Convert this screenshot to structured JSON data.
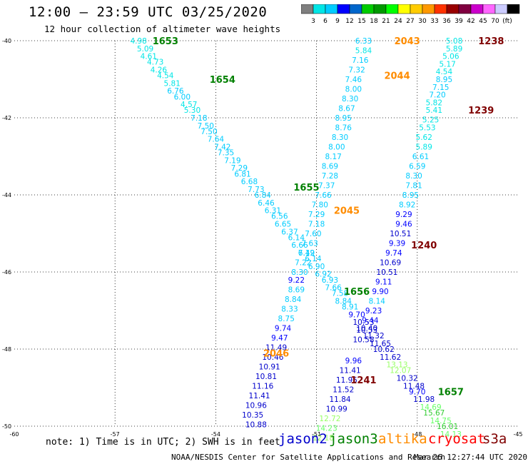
{
  "header": {
    "title": "12:00 – 23:59 UTC 03/25/2020",
    "subtitle": "12 hour collection of altimeter wave heights"
  },
  "scale": {
    "colors": [
      "#7f7f7f",
      "#00e6e6",
      "#00ccff",
      "#0000ff",
      "#0066cc",
      "#00cc00",
      "#009900",
      "#00ff00",
      "#ffff00",
      "#ffcc00",
      "#ff9900",
      "#ff3300",
      "#990000",
      "#800040",
      "#cc00cc",
      "#ff66ff",
      "#ccccff",
      "#000000"
    ],
    "labels": [
      "3",
      "6",
      "9",
      "12",
      "15",
      "18",
      "21",
      "24",
      "27",
      "30",
      "33",
      "36",
      "39",
      "42",
      "45",
      "70",
      "(ft)"
    ]
  },
  "map": {
    "lat_ticks": [
      "-40",
      "-42",
      "-44",
      "-46",
      "-48",
      "-50"
    ],
    "lon_ticks": [
      "-60",
      "-57",
      "-54",
      "-51",
      "-48",
      "-45"
    ],
    "lat_range": [
      -50,
      -40
    ],
    "lon_range": [
      -60,
      -45
    ],
    "grid": "dotted"
  },
  "passes": [
    {
      "label": "1653",
      "color": "#008000",
      "lat": -40.0,
      "lon": -55.5
    },
    {
      "label": "1654",
      "color": "#008000",
      "lat": -41.0,
      "lon": -53.8
    },
    {
      "label": "1655",
      "color": "#008000",
      "lat": -43.8,
      "lon": -51.3
    },
    {
      "label": "1656",
      "color": "#008000",
      "lat": -46.5,
      "lon": -49.8
    },
    {
      "label": "1657",
      "color": "#008000",
      "lat": -49.1,
      "lon": -47.0
    },
    {
      "label": "2043",
      "color": "#ff8c00",
      "lat": -40.0,
      "lon": -48.3
    },
    {
      "label": "2044",
      "color": "#ff8c00",
      "lat": -40.9,
      "lon": -48.6
    },
    {
      "label": "2045",
      "color": "#ff8c00",
      "lat": -44.4,
      "lon": -50.1
    },
    {
      "label": "2046",
      "color": "#ff8c00",
      "lat": -48.1,
      "lon": -52.2
    },
    {
      "label": "1238",
      "color": "#800000",
      "lat": -40.0,
      "lon": -45.8
    },
    {
      "label": "1239",
      "color": "#800000",
      "lat": -41.8,
      "lon": -46.1
    },
    {
      "label": "1240",
      "color": "#800000",
      "lat": -45.3,
      "lon": -47.8
    },
    {
      "label": "1241",
      "color": "#800000",
      "lat": -48.8,
      "lon": -49.6
    }
  ],
  "tracks": [
    {
      "color_key": "jason3",
      "points": [
        {
          "lat": -40.0,
          "lon": -56.3,
          "v": "4.98",
          "c": "#00e6e6"
        },
        {
          "lat": -40.2,
          "lon": -56.1,
          "v": "5.09",
          "c": "#00e6e6"
        },
        {
          "lat": -40.4,
          "lon": -56.0,
          "v": "4.61",
          "c": "#00e6e6"
        },
        {
          "lat": -40.55,
          "lon": -55.8,
          "v": "4.73",
          "c": "#00e6e6"
        },
        {
          "lat": -40.75,
          "lon": -55.7,
          "v": "4.26",
          "c": "#00e6e6"
        },
        {
          "lat": -40.9,
          "lon": -55.5,
          "v": "4.54",
          "c": "#00e6e6"
        },
        {
          "lat": -41.1,
          "lon": -55.3,
          "v": "5.81",
          "c": "#00e6e6"
        },
        {
          "lat": -41.3,
          "lon": -55.2,
          "v": "6.76",
          "c": "#00ccff"
        },
        {
          "lat": -41.45,
          "lon": -55.0,
          "v": "6.00",
          "c": "#00ccff"
        },
        {
          "lat": -41.65,
          "lon": -54.8,
          "v": "4.57",
          "c": "#00e6e6"
        },
        {
          "lat": -41.8,
          "lon": -54.7,
          "v": "5.30",
          "c": "#00e6e6"
        },
        {
          "lat": -42.0,
          "lon": -54.5,
          "v": "7.18",
          "c": "#00ccff"
        },
        {
          "lat": -42.2,
          "lon": -54.3,
          "v": "7.50",
          "c": "#00ccff"
        },
        {
          "lat": -42.35,
          "lon": -54.2,
          "v": "7.50",
          "c": "#00ccff"
        },
        {
          "lat": -42.55,
          "lon": -54.0,
          "v": "7.64",
          "c": "#00ccff"
        },
        {
          "lat": -42.75,
          "lon": -53.8,
          "v": "7.42",
          "c": "#00ccff"
        },
        {
          "lat": -42.9,
          "lon": -53.7,
          "v": "7.35",
          "c": "#00ccff"
        },
        {
          "lat": -43.1,
          "lon": -53.5,
          "v": "7.19",
          "c": "#00ccff"
        },
        {
          "lat": -43.3,
          "lon": -53.3,
          "v": "7.29",
          "c": "#00ccff"
        },
        {
          "lat": -43.45,
          "lon": -53.2,
          "v": "6.81",
          "c": "#00ccff"
        },
        {
          "lat": -43.65,
          "lon": -53.0,
          "v": "6.68",
          "c": "#00ccff"
        },
        {
          "lat": -43.85,
          "lon": -52.8,
          "v": "7.73",
          "c": "#00ccff"
        },
        {
          "lat": -44.0,
          "lon": -52.6,
          "v": "6.84",
          "c": "#00ccff"
        },
        {
          "lat": -44.2,
          "lon": -52.5,
          "v": "6.46",
          "c": "#00ccff"
        },
        {
          "lat": -44.4,
          "lon": -52.3,
          "v": "6.31",
          "c": "#00ccff"
        },
        {
          "lat": -44.55,
          "lon": -52.1,
          "v": "6.56",
          "c": "#00ccff"
        },
        {
          "lat": -44.75,
          "lon": -52.0,
          "v": "6.65",
          "c": "#00ccff"
        },
        {
          "lat": -44.95,
          "lon": -51.8,
          "v": "6.37",
          "c": "#00ccff"
        },
        {
          "lat": -45.1,
          "lon": -51.6,
          "v": "6.14",
          "c": "#00ccff"
        },
        {
          "lat": -45.3,
          "lon": -51.5,
          "v": "6.66",
          "c": "#00ccff"
        },
        {
          "lat": -45.5,
          "lon": -51.3,
          "v": "6.42",
          "c": "#00ccff"
        },
        {
          "lat": -45.65,
          "lon": -51.1,
          "v": "6.14",
          "c": "#00ccff"
        },
        {
          "lat": -45.85,
          "lon": -51.0,
          "v": "6.90",
          "c": "#00ccff"
        },
        {
          "lat": -46.05,
          "lon": -50.8,
          "v": "6.92",
          "c": "#00ccff"
        },
        {
          "lat": -46.2,
          "lon": -50.6,
          "v": "6.93",
          "c": "#00ccff"
        },
        {
          "lat": -46.4,
          "lon": -50.5,
          "v": "7.66",
          "c": "#00ccff"
        },
        {
          "lat": -46.55,
          "lon": -50.3,
          "v": "7.58",
          "c": "#00ccff"
        },
        {
          "lat": -46.75,
          "lon": -50.2,
          "v": "8.84",
          "c": "#00ccff"
        },
        {
          "lat": -46.9,
          "lon": -50.0,
          "v": "8.91",
          "c": "#00ccff"
        },
        {
          "lat": -47.1,
          "lon": -49.8,
          "v": "9.70",
          "c": "#0000ff"
        },
        {
          "lat": -47.3,
          "lon": -49.6,
          "v": "10.53",
          "c": "#0000cc"
        },
        {
          "lat": -47.45,
          "lon": -49.5,
          "v": "10.40",
          "c": "#0000cc"
        },
        {
          "lat": -47.65,
          "lon": -49.3,
          "v": "11.32",
          "c": "#0000cc"
        },
        {
          "lat": -47.85,
          "lon": -49.1,
          "v": "11.65",
          "c": "#0000cc"
        },
        {
          "lat": -48.0,
          "lon": -49.0,
          "v": "10.62",
          "c": "#0000cc"
        },
        {
          "lat": -48.2,
          "lon": -48.8,
          "v": "11.62",
          "c": "#0000cc"
        },
        {
          "lat": -48.4,
          "lon": -48.6,
          "v": "13.13",
          "c": "#99ff66"
        },
        {
          "lat": -48.55,
          "lon": -48.5,
          "v": "12.07",
          "c": "#99ff66"
        },
        {
          "lat": -48.75,
          "lon": -48.3,
          "v": "10.32",
          "c": "#0000cc"
        },
        {
          "lat": -48.95,
          "lon": -48.1,
          "v": "11.48",
          "c": "#0000cc"
        },
        {
          "lat": -49.1,
          "lon": -48.0,
          "v": "9.70",
          "c": "#0000ff"
        },
        {
          "lat": -49.3,
          "lon": -47.8,
          "v": "11.98",
          "c": "#0000cc"
        },
        {
          "lat": -49.5,
          "lon": -47.6,
          "v": "14.69",
          "c": "#66ff66"
        },
        {
          "lat": -49.65,
          "lon": -47.5,
          "v": "15.67",
          "c": "#33cc33"
        },
        {
          "lat": -49.85,
          "lon": -47.3,
          "v": "14.75",
          "c": "#66ff66"
        },
        {
          "lat": -50.0,
          "lon": -47.1,
          "v": "16.01",
          "c": "#33cc33"
        },
        {
          "lat": -50.2,
          "lon": -47.0,
          "v": "14.13",
          "c": "#66ff66"
        }
      ]
    },
    {
      "color_key": "altika",
      "points": [
        {
          "lat": -40.0,
          "lon": -49.6,
          "v": "6.33",
          "c": "#00ccff"
        },
        {
          "lat": -40.25,
          "lon": -49.6,
          "v": "5.84",
          "c": "#00e6e6"
        },
        {
          "lat": -40.5,
          "lon": -49.7,
          "v": "7.16",
          "c": "#00ccff"
        },
        {
          "lat": -40.75,
          "lon": -49.8,
          "v": "7.32",
          "c": "#00ccff"
        },
        {
          "lat": -41.0,
          "lon": -49.9,
          "v": "7.46",
          "c": "#00ccff"
        },
        {
          "lat": -41.25,
          "lon": -49.9,
          "v": "8.00",
          "c": "#00ccff"
        },
        {
          "lat": -41.5,
          "lon": -50.0,
          "v": "8.30",
          "c": "#00ccff"
        },
        {
          "lat": -41.75,
          "lon": -50.1,
          "v": "8.67",
          "c": "#00ccff"
        },
        {
          "lat": -42.0,
          "lon": -50.2,
          "v": "8.95",
          "c": "#00ccff"
        },
        {
          "lat": -42.25,
          "lon": -50.2,
          "v": "8.76",
          "c": "#00ccff"
        },
        {
          "lat": -42.5,
          "lon": -50.3,
          "v": "8.30",
          "c": "#00ccff"
        },
        {
          "lat": -42.75,
          "lon": -50.4,
          "v": "8.00",
          "c": "#00ccff"
        },
        {
          "lat": -43.0,
          "lon": -50.5,
          "v": "8.17",
          "c": "#00ccff"
        },
        {
          "lat": -43.25,
          "lon": -50.6,
          "v": "8.69",
          "c": "#00ccff"
        },
        {
          "lat": -43.5,
          "lon": -50.6,
          "v": "7.28",
          "c": "#00ccff"
        },
        {
          "lat": -43.75,
          "lon": -50.7,
          "v": "7.37",
          "c": "#00ccff"
        },
        {
          "lat": -44.0,
          "lon": -50.8,
          "v": "7.66",
          "c": "#00ccff"
        },
        {
          "lat": -44.25,
          "lon": -50.9,
          "v": "7.80",
          "c": "#00ccff"
        },
        {
          "lat": -44.5,
          "lon": -51.0,
          "v": "7.29",
          "c": "#00ccff"
        },
        {
          "lat": -44.75,
          "lon": -51.0,
          "v": "7.18",
          "c": "#00ccff"
        },
        {
          "lat": -45.0,
          "lon": -51.1,
          "v": "7.60",
          "c": "#00ccff"
        },
        {
          "lat": -45.25,
          "lon": -51.2,
          "v": "7.63",
          "c": "#00ccff"
        },
        {
          "lat": -45.5,
          "lon": -51.3,
          "v": "7.19",
          "c": "#00ccff"
        },
        {
          "lat": -45.75,
          "lon": -51.4,
          "v": "7.22",
          "c": "#00ccff"
        },
        {
          "lat": -46.0,
          "lon": -51.5,
          "v": "8.30",
          "c": "#00ccff"
        },
        {
          "lat": -46.2,
          "lon": -51.6,
          "v": "9.22",
          "c": "#0000ff"
        },
        {
          "lat": -46.45,
          "lon": -51.6,
          "v": "8.69",
          "c": "#00ccff"
        },
        {
          "lat": -46.7,
          "lon": -51.7,
          "v": "8.84",
          "c": "#00ccff"
        },
        {
          "lat": -46.95,
          "lon": -51.8,
          "v": "8.33",
          "c": "#00ccff"
        },
        {
          "lat": -47.2,
          "lon": -51.9,
          "v": "8.75",
          "c": "#00ccff"
        },
        {
          "lat": -47.45,
          "lon": -52.0,
          "v": "9.74",
          "c": "#0000ff"
        },
        {
          "lat": -47.7,
          "lon": -52.1,
          "v": "9.47",
          "c": "#0000ff"
        },
        {
          "lat": -47.95,
          "lon": -52.2,
          "v": "11.49",
          "c": "#0000cc"
        },
        {
          "lat": -48.2,
          "lon": -52.3,
          "v": "10.46",
          "c": "#0000cc"
        },
        {
          "lat": -48.45,
          "lon": -52.4,
          "v": "10.91",
          "c": "#0000cc"
        },
        {
          "lat": -48.7,
          "lon": -52.5,
          "v": "10.81",
          "c": "#0000cc"
        },
        {
          "lat": -48.95,
          "lon": -52.6,
          "v": "11.16",
          "c": "#0000cc"
        },
        {
          "lat": -49.2,
          "lon": -52.7,
          "v": "11.41",
          "c": "#0000cc"
        },
        {
          "lat": -49.45,
          "lon": -52.8,
          "v": "10.96",
          "c": "#0000cc"
        },
        {
          "lat": -49.7,
          "lon": -52.9,
          "v": "10.35",
          "c": "#0000cc"
        },
        {
          "lat": -49.95,
          "lon": -52.8,
          "v": "10.88",
          "c": "#0000cc"
        }
      ]
    },
    {
      "color_key": "s3a",
      "points": [
        {
          "lat": -40.0,
          "lon": -46.9,
          "v": "5.08",
          "c": "#00e6e6"
        },
        {
          "lat": -40.2,
          "lon": -46.9,
          "v": "5.89",
          "c": "#00e6e6"
        },
        {
          "lat": -40.4,
          "lon": -47.0,
          "v": "5.06",
          "c": "#00e6e6"
        },
        {
          "lat": -40.6,
          "lon": -47.1,
          "v": "5.17",
          "c": "#00e6e6"
        },
        {
          "lat": -40.8,
          "lon": -47.2,
          "v": "4.54",
          "c": "#00e6e6"
        },
        {
          "lat": -41.0,
          "lon": -47.2,
          "v": "8.95",
          "c": "#00ccff"
        },
        {
          "lat": -41.2,
          "lon": -47.3,
          "v": "7.15",
          "c": "#00ccff"
        },
        {
          "lat": -41.4,
          "lon": -47.4,
          "v": "7.20",
          "c": "#00ccff"
        },
        {
          "lat": -41.6,
          "lon": -47.5,
          "v": "5.82",
          "c": "#00e6e6"
        },
        {
          "lat": -41.8,
          "lon": -47.5,
          "v": "5.41",
          "c": "#00e6e6"
        },
        {
          "lat": -42.05,
          "lon": -47.6,
          "v": "5.25",
          "c": "#00e6e6"
        },
        {
          "lat": -42.25,
          "lon": -47.7,
          "v": "5.53",
          "c": "#00e6e6"
        },
        {
          "lat": -42.5,
          "lon": -47.8,
          "v": "5.62",
          "c": "#00e6e6"
        },
        {
          "lat": -42.75,
          "lon": -47.8,
          "v": "5.89",
          "c": "#00e6e6"
        },
        {
          "lat": -43.0,
          "lon": -47.9,
          "v": "6.61",
          "c": "#00ccff"
        },
        {
          "lat": -43.25,
          "lon": -48.0,
          "v": "6.59",
          "c": "#00ccff"
        },
        {
          "lat": -43.5,
          "lon": -48.1,
          "v": "8.30",
          "c": "#00ccff"
        },
        {
          "lat": -43.75,
          "lon": -48.1,
          "v": "7.81",
          "c": "#00ccff"
        },
        {
          "lat": -44.0,
          "lon": -48.2,
          "v": "8.95",
          "c": "#00ccff"
        },
        {
          "lat": -44.25,
          "lon": -48.3,
          "v": "8.92",
          "c": "#00ccff"
        },
        {
          "lat": -44.5,
          "lon": -48.4,
          "v": "9.29",
          "c": "#0000ff"
        },
        {
          "lat": -44.75,
          "lon": -48.4,
          "v": "9.46",
          "c": "#0000ff"
        },
        {
          "lat": -45.0,
          "lon": -48.5,
          "v": "10.51",
          "c": "#0000cc"
        },
        {
          "lat": -45.25,
          "lon": -48.6,
          "v": "9.39",
          "c": "#0000ff"
        },
        {
          "lat": -45.5,
          "lon": -48.7,
          "v": "9.74",
          "c": "#0000ff"
        },
        {
          "lat": -45.75,
          "lon": -48.8,
          "v": "10.69",
          "c": "#0000cc"
        },
        {
          "lat": -46.0,
          "lon": -48.9,
          "v": "10.51",
          "c": "#0000cc"
        },
        {
          "lat": -46.25,
          "lon": -49.0,
          "v": "9.11",
          "c": "#0000ff"
        },
        {
          "lat": -46.5,
          "lon": -49.1,
          "v": "9.90",
          "c": "#0000ff"
        },
        {
          "lat": -46.75,
          "lon": -49.2,
          "v": "8.14",
          "c": "#00ccff"
        },
        {
          "lat": -47.0,
          "lon": -49.3,
          "v": "9.23",
          "c": "#0000ff"
        },
        {
          "lat": -47.25,
          "lon": -49.4,
          "v": "9.44",
          "c": "#0000ff"
        },
        {
          "lat": -47.5,
          "lon": -49.5,
          "v": "10.53",
          "c": "#0000cc"
        },
        {
          "lat": -47.75,
          "lon": -49.6,
          "v": "10.58",
          "c": "#0000cc"
        },
        {
          "lat": -48.3,
          "lon": -49.9,
          "v": "9.96",
          "c": "#0000ff"
        },
        {
          "lat": -48.55,
          "lon": -50.0,
          "v": "11.41",
          "c": "#0000cc"
        },
        {
          "lat": -48.8,
          "lon": -50.1,
          "v": "11.95",
          "c": "#0000cc"
        },
        {
          "lat": -49.05,
          "lon": -50.2,
          "v": "11.52",
          "c": "#0000cc"
        },
        {
          "lat": -49.3,
          "lon": -50.3,
          "v": "11.84",
          "c": "#0000cc"
        },
        {
          "lat": -49.55,
          "lon": -50.4,
          "v": "10.99",
          "c": "#0000cc"
        },
        {
          "lat": -49.8,
          "lon": -50.6,
          "v": "12.72",
          "c": "#99ff66"
        },
        {
          "lat": -50.05,
          "lon": -50.7,
          "v": "14.23",
          "c": "#66ff66"
        },
        {
          "lat": -50.3,
          "lon": -50.8,
          "v": "12.18",
          "c": "#99ff66"
        }
      ]
    }
  ],
  "footer": {
    "note": "note: 1) Time is in UTC; 2) SWH is in feet",
    "credit": "NOAA/NESDIS Center for Satellite Applications and Research",
    "time": "Mar 26 12:27:44 UTC 2020"
  },
  "satellites": [
    {
      "name": "jason2",
      "color": "#0000cc"
    },
    {
      "name": "jason3",
      "color": "#008000"
    },
    {
      "name": "altika",
      "color": "#ff8c00"
    },
    {
      "name": "cryosat",
      "color": "#ff0000"
    },
    {
      "name": "s3a",
      "color": "#800000"
    }
  ]
}
